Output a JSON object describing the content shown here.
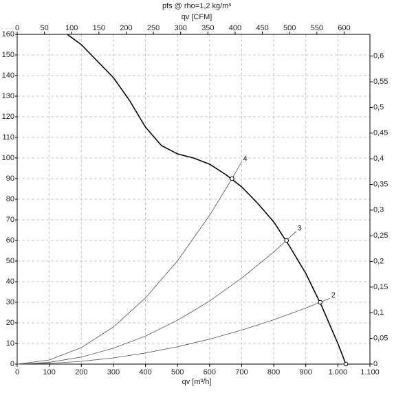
{
  "chart_data": {
    "type": "line",
    "title": "pfs @ rho=1,2 kg/m³",
    "xlabel": "qv [m³/h]",
    "x2label": "qv [CFM]",
    "xlim": [
      0,
      1100
    ],
    "xticks": [
      0,
      100,
      200,
      300,
      400,
      500,
      600,
      700,
      800,
      900,
      {
        "value": 1000,
        "label": "1.000"
      },
      {
        "value": 1100,
        "label": "1.100"
      }
    ],
    "x2lim": [
      0,
      647.4
    ],
    "x2ticks": [
      0,
      50,
      100,
      150,
      200,
      250,
      300,
      350,
      400,
      450,
      500,
      550,
      600
    ],
    "ylim": [
      0,
      160
    ],
    "yticks": [
      0,
      10,
      20,
      30,
      40,
      50,
      60,
      70,
      80,
      90,
      100,
      110,
      120,
      130,
      140,
      150,
      160
    ],
    "y2lim": [
      0,
      0.6424
    ],
    "y2ticks": [
      0,
      {
        "value": 0.05,
        "label": "0,05"
      },
      {
        "value": 0.1,
        "label": "0,1"
      },
      {
        "value": 0.15,
        "label": "0,15"
      },
      {
        "value": 0.2,
        "label": "0,2"
      },
      {
        "value": 0.25,
        "label": "0,25"
      },
      {
        "value": 0.3,
        "label": "0,3"
      },
      {
        "value": 0.35,
        "label": "0,35"
      },
      {
        "value": 0.4,
        "label": "0,4"
      },
      {
        "value": 0.45,
        "label": "0,45"
      },
      {
        "value": 0.5,
        "label": "0,5"
      },
      {
        "value": 0.55,
        "label": "0,55"
      },
      {
        "value": 0.6,
        "label": "0,6"
      }
    ],
    "grid": true,
    "series": [
      {
        "color": "#000000",
        "x": [
          156,
          200,
          250,
          300,
          350,
          400,
          450,
          500,
          550,
          600,
          650,
          700,
          750,
          800,
          850,
          900,
          950,
          1000,
          1025
        ],
        "values": [
          160,
          155,
          147,
          139,
          128,
          115,
          106,
          102,
          100,
          97,
          92,
          86,
          78,
          69,
          57,
          44,
          28,
          10,
          0
        ]
      }
    ],
    "system_curves": [
      {
        "label": "4",
        "color": "#555555",
        "x": [
          0,
          100,
          200,
          300,
          400,
          500,
          600,
          670,
          700
        ],
        "values": [
          0,
          2.0,
          8.0,
          18.0,
          32.1,
          50.1,
          72.2,
          90,
          98.2
        ]
      },
      {
        "label": "3",
        "color": "#555555",
        "x": [
          0,
          100,
          200,
          300,
          400,
          500,
          600,
          700,
          800,
          840,
          870
        ],
        "values": [
          0,
          0.85,
          3.4,
          7.7,
          13.6,
          21.3,
          30.6,
          41.7,
          54.4,
          60,
          64.4
        ]
      },
      {
        "label": "2",
        "color": "#555555",
        "x": [
          0,
          100,
          200,
          300,
          400,
          500,
          600,
          700,
          800,
          900,
          945,
          975
        ],
        "values": [
          0,
          0.34,
          1.34,
          3.0,
          5.4,
          8.4,
          12.1,
          16.5,
          21.5,
          27.2,
          30,
          31.9
        ]
      }
    ],
    "points": {
      "x": [
        670,
        840,
        945,
        1025
      ],
      "values": [
        90,
        60,
        30,
        0
      ]
    }
  }
}
